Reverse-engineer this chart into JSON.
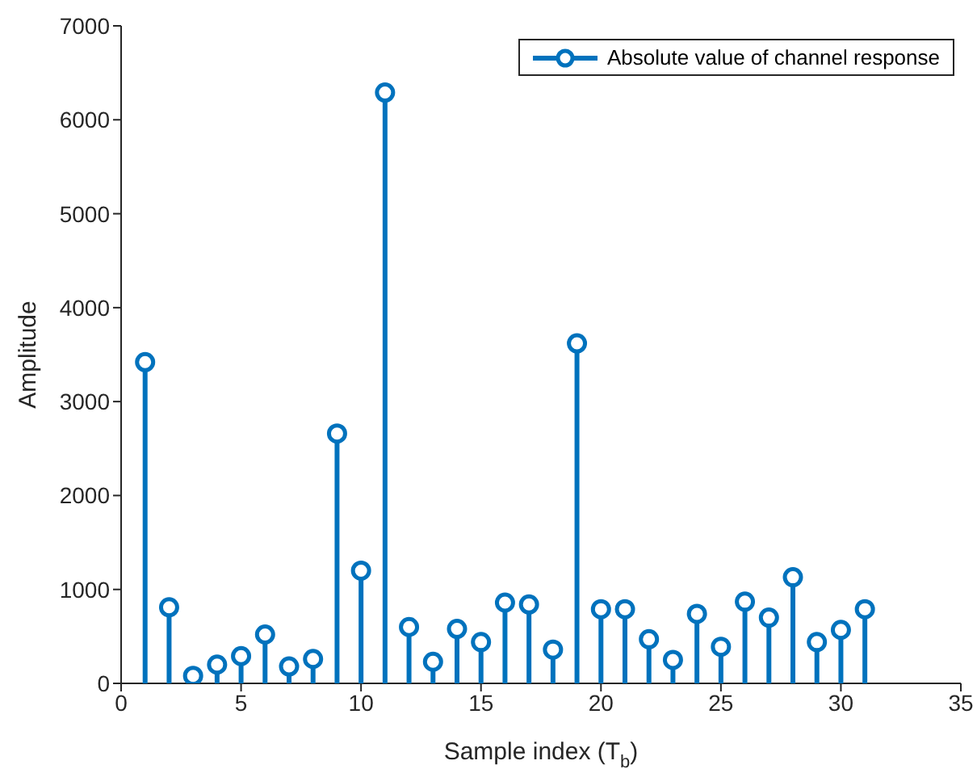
{
  "chart_data": {
    "type": "lollipop",
    "xlabel": "Sample index (T$_{b}$)",
    "ylabel": "Amplitude",
    "x": [
      1,
      2,
      3,
      4,
      5,
      6,
      7,
      8,
      9,
      10,
      11,
      12,
      13,
      14,
      15,
      16,
      17,
      18,
      19,
      20,
      21,
      22,
      23,
      24,
      25,
      26,
      27,
      28,
      29,
      30,
      31
    ],
    "series": [
      {
        "name": "Absolute value of channel response",
        "color": "#0072bd",
        "values": [
          3420,
          810,
          80,
          200,
          290,
          520,
          180,
          260,
          2660,
          1200,
          6290,
          600,
          230,
          580,
          440,
          860,
          840,
          360,
          3620,
          790,
          790,
          470,
          250,
          740,
          390,
          870,
          700,
          1130,
          440,
          570,
          790
        ]
      }
    ],
    "xlim": [
      0,
      35
    ],
    "xticks": [
      0,
      5,
      10,
      15,
      20,
      25,
      30,
      35
    ],
    "ylim": [
      0,
      7000
    ],
    "yticks": [
      0,
      1000,
      2000,
      3000,
      4000,
      5000,
      6000,
      7000
    ],
    "legend": "top right",
    "marker": "circle",
    "grid": false
  }
}
